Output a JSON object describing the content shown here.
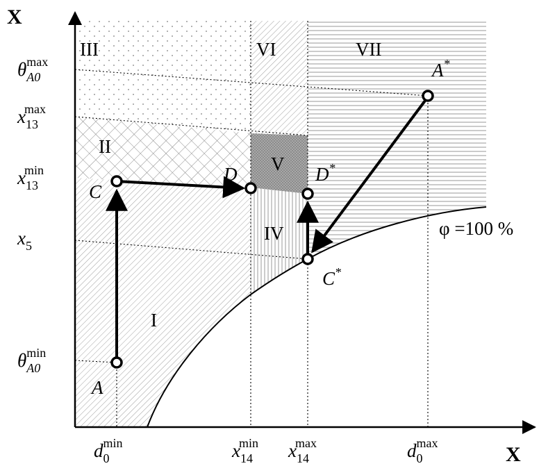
{
  "axes": {
    "x_name": "X",
    "y_name": "X",
    "x_ticks": [
      {
        "id": "d0min",
        "base": "d",
        "sub": "0",
        "sup": "min"
      },
      {
        "id": "x14min",
        "base": "x",
        "sub": "14",
        "sup": "min"
      },
      {
        "id": "x14max",
        "base": "x",
        "sub": "14",
        "sup": "max"
      },
      {
        "id": "d0max",
        "base": "d",
        "sub": "0",
        "sup": "max"
      }
    ],
    "y_ticks": [
      {
        "id": "thetaA0max",
        "base": "θ",
        "sub": "A0",
        "sup": "max"
      },
      {
        "id": "x13max",
        "base": "x",
        "sub": "13",
        "sup": "max"
      },
      {
        "id": "x13min",
        "base": "x",
        "sub": "13",
        "sup": "min"
      },
      {
        "id": "x5",
        "base": "x",
        "sub": "5",
        "sup": ""
      },
      {
        "id": "thetaA0min",
        "base": "θ",
        "sub": "A0",
        "sup": "min"
      }
    ]
  },
  "regions": [
    "I",
    "II",
    "III",
    "IV",
    "V",
    "VI",
    "VII"
  ],
  "points": {
    "A": "A",
    "C": "C",
    "D": "D",
    "D_star": {
      "base": "D",
      "star": "*"
    },
    "C_star": {
      "base": "C",
      "star": "*"
    },
    "A_star": {
      "base": "A",
      "star": "*"
    }
  },
  "curve_label": "φ =100 %"
}
